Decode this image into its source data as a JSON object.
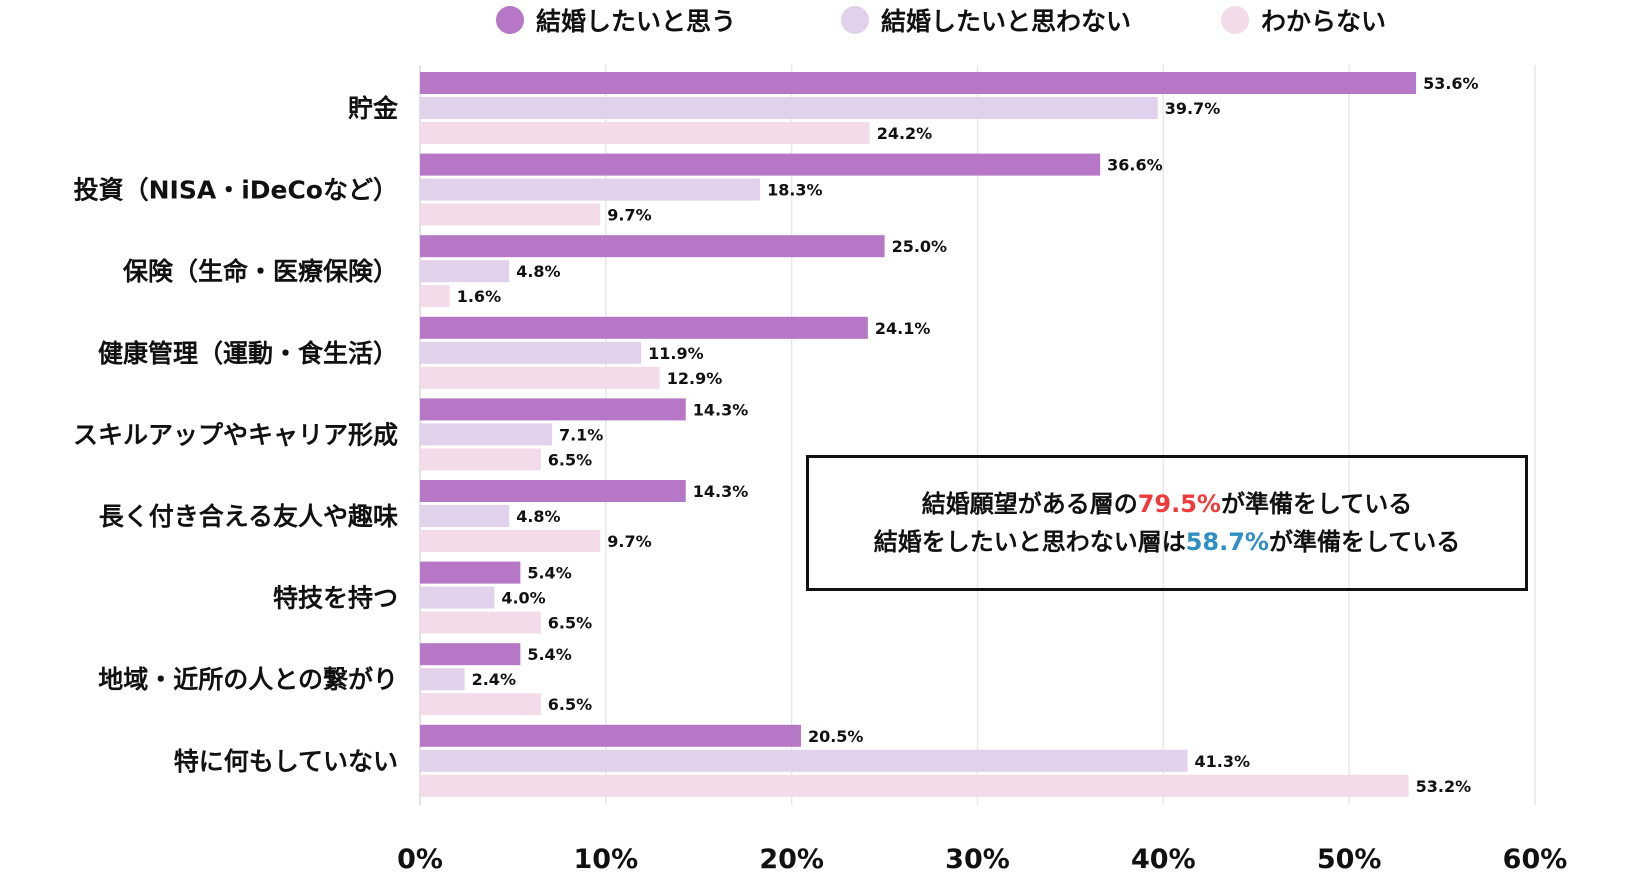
{
  "chart_data": {
    "type": "bar",
    "orientation": "horizontal",
    "categories": [
      "貯金",
      "投資（NISA・iDeCoなど）",
      "保険（生命・医療保険）",
      "健康管理（運動・食生活）",
      "スキルアップやキャリア形成",
      "長く付き合える友人や趣味",
      "特技を持つ",
      "地域・近所の人との繋がり",
      "特に何もしていない"
    ],
    "series": [
      {
        "name": "結婚したいと思う",
        "color": "#b577c6",
        "values": [
          53.6,
          36.6,
          25.0,
          24.1,
          14.3,
          14.3,
          5.4,
          5.4,
          20.5
        ]
      },
      {
        "name": "結婚したいと思わない",
        "color": "#e2d1ea",
        "values": [
          39.7,
          18.3,
          4.8,
          11.9,
          7.1,
          4.8,
          4.0,
          2.4,
          41.3
        ]
      },
      {
        "name": "わからない",
        "color": "#f4dbe9",
        "values": [
          24.2,
          9.7,
          1.6,
          12.9,
          6.5,
          9.7,
          6.5,
          6.5,
          53.2
        ]
      }
    ],
    "xlim": [
      0,
      60
    ],
    "xticks": [
      "0%",
      "10%",
      "20%",
      "30%",
      "40%",
      "50%",
      "60%"
    ],
    "xtick_values": [
      0,
      10,
      20,
      30,
      40,
      50,
      60
    ],
    "grid": true,
    "legend_placement": "top",
    "title": "",
    "xlabel": "",
    "ylabel": ""
  },
  "annotation": {
    "line1_pre": "結婚願望がある層の",
    "line1_value": "79.5%",
    "line1_post": "が準備をしている",
    "line2_pre": "結婚をしたいと思わない層は",
    "line2_value": "58.7%",
    "line2_post": "が準備をしている",
    "highlight_colors": [
      "#f03a3a",
      "#2e8fc4"
    ]
  }
}
